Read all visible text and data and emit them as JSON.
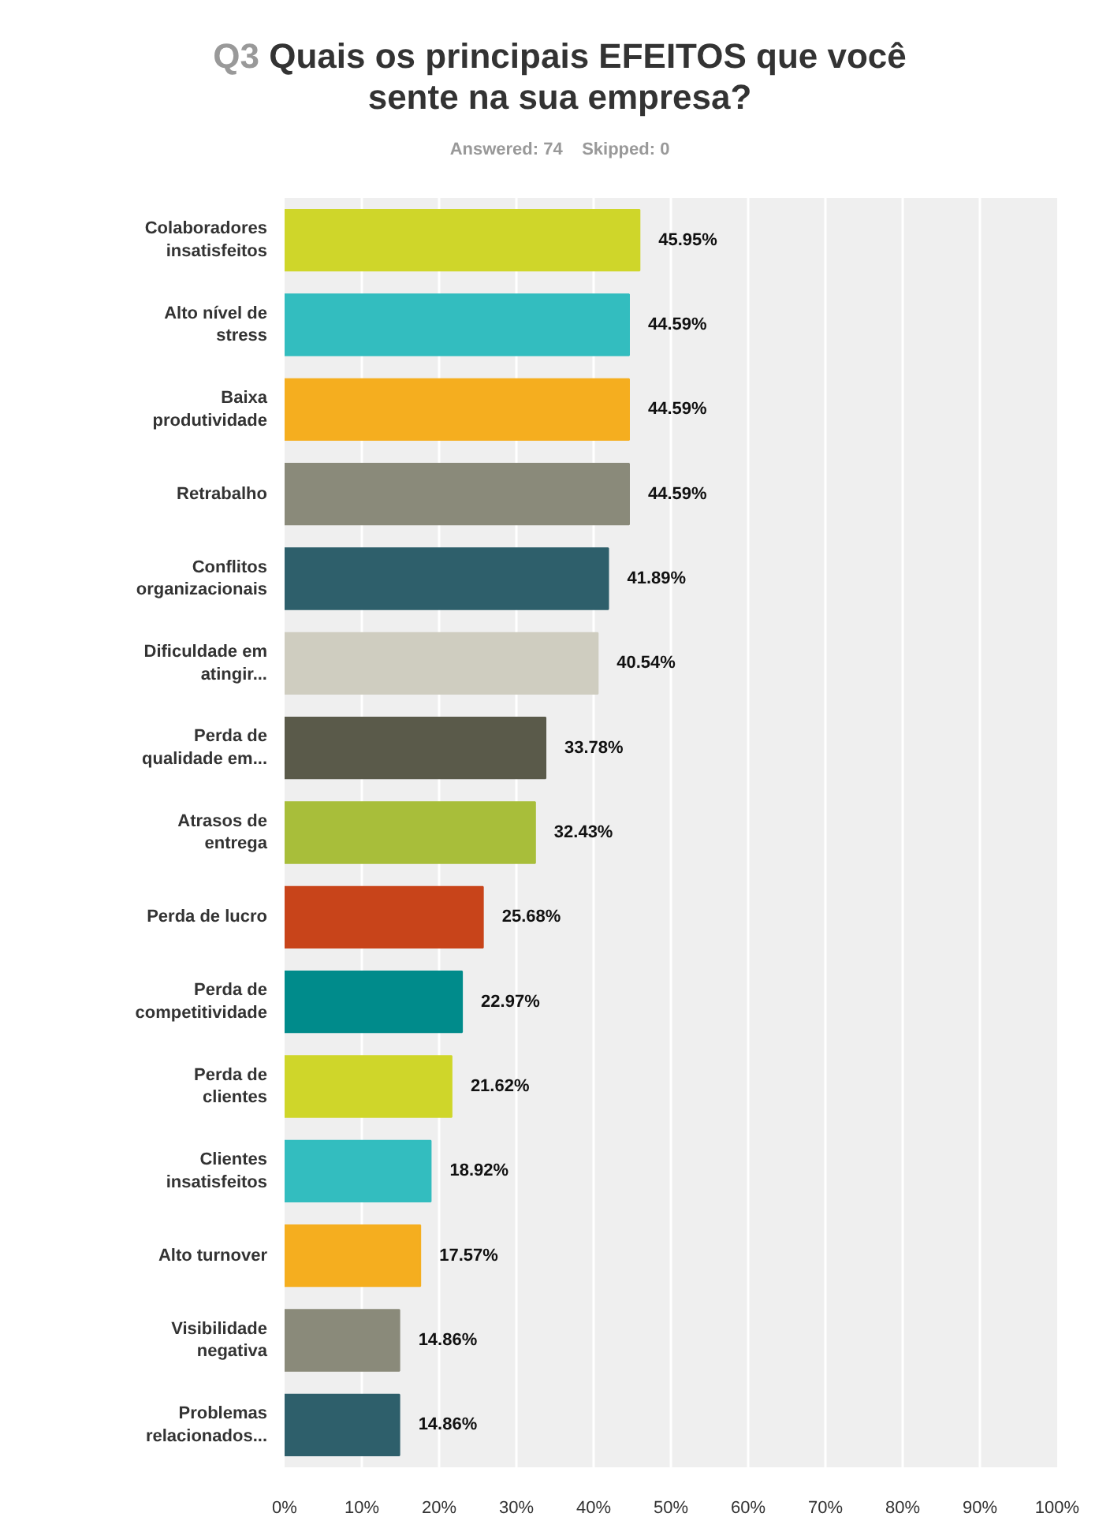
{
  "chart_data": {
    "type": "bar",
    "orientation": "horizontal",
    "title": "Q3 Quais os principais EFEITOS que você sente na sua empresa?",
    "subtitle": "Answered: 74    Skipped: 0",
    "categories": [
      "Colaboradores\ninsatisfeitos",
      "Alto nível de\nstress",
      "Baixa\nprodutividade",
      "Retrabalho",
      "Conflitos\norganizacionais",
      "Dificuldade em\natingir...",
      "Perda de\nqualidade em...",
      "Atrasos de\nentrega",
      "Perda de lucro",
      "Perda de\ncompetitividade",
      "Perda de\nclientes",
      "Clientes\ninsatisfeitos",
      "Alto turnover",
      "Visibilidade\nnegativa",
      "Problemas\nrelacionados..."
    ],
    "values": [
      45.95,
      44.59,
      44.59,
      44.59,
      41.89,
      40.54,
      33.78,
      32.43,
      25.68,
      22.97,
      21.62,
      18.92,
      17.57,
      14.86,
      14.86
    ],
    "value_labels": [
      "45.95%",
      "44.59%",
      "44.59%",
      "44.59%",
      "41.89%",
      "40.54%",
      "33.78%",
      "32.43%",
      "25.68%",
      "22.97%",
      "21.62%",
      "18.92%",
      "17.57%",
      "14.86%",
      "14.86%"
    ],
    "colors": [
      "#cfd62a",
      "#33bdbf",
      "#f5ae1f",
      "#8a8a7a",
      "#2e5f6b",
      "#cfcdc0",
      "#5a5a4a",
      "#a8be3a",
      "#c8441a",
      "#008b8b",
      "#cfd62a",
      "#33bdbf",
      "#f5ae1f",
      "#8a8a7a",
      "#2e5f6b"
    ],
    "xlim": [
      0,
      100
    ],
    "xticks": [
      {
        "value": 0,
        "label": "0%"
      },
      {
        "value": 10,
        "label": "10%"
      },
      {
        "value": 20,
        "label": "20%"
      },
      {
        "value": 30,
        "label": "30%"
      },
      {
        "value": 40,
        "label": "40%"
      },
      {
        "value": 50,
        "label": "50%"
      },
      {
        "value": 60,
        "label": "60%"
      },
      {
        "value": 70,
        "label": "70%"
      },
      {
        "value": 80,
        "label": "80%"
      },
      {
        "value": 90,
        "label": "90%"
      },
      {
        "value": 100,
        "label": "100%"
      }
    ],
    "grid": "x"
  }
}
